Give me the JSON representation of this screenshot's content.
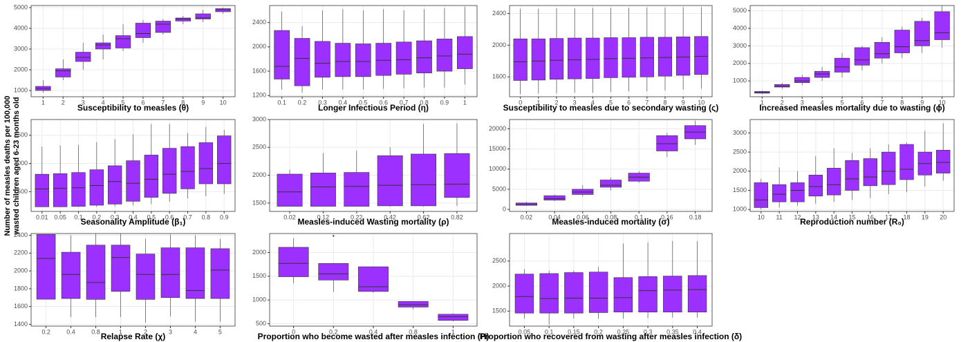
{
  "ylabel": [
    "Number of measles deaths per 100,000",
    "wasted children aged 6-23 months old"
  ],
  "chart_data": [
    {
      "type": "box",
      "xlabel": "Susceptibility to measles (θ)",
      "color": "#9b30ff",
      "categories": [
        "1",
        "2",
        "3",
        "4",
        "5",
        "6",
        "7",
        "8",
        "9",
        "10"
      ],
      "values": [
        [
          900,
          1000,
          1100,
          1200,
          1500
        ],
        [
          1500,
          1650,
          1950,
          2050,
          2500
        ],
        [
          2000,
          2400,
          2600,
          2850,
          3300
        ],
        [
          2500,
          3000,
          3200,
          3300,
          3700
        ],
        [
          2900,
          3050,
          3500,
          3650,
          4200
        ],
        [
          3300,
          3550,
          3750,
          4250,
          4400
        ],
        [
          3700,
          3800,
          4200,
          4350,
          4450
        ],
        [
          4200,
          4350,
          4450,
          4500,
          4600
        ],
        [
          4300,
          4450,
          4500,
          4700,
          4900
        ],
        [
          4700,
          4800,
          4900,
          4950,
          5000
        ]
      ],
      "ylim": [
        700,
        5100
      ],
      "yticks": [
        1000,
        2000,
        3000,
        4000,
        5000
      ],
      "grid": true
    },
    {
      "type": "box",
      "xlabel": "Longer Infectious Period (η)",
      "color": "#9b30ff",
      "categories": [
        "0.1",
        "0.2",
        "0.3",
        "0.4",
        "0.5",
        "0.6",
        "0.7",
        "0.8",
        "0.9",
        "1"
      ],
      "values": [
        [
          1300,
          1470,
          1680,
          2270,
          2580
        ],
        [
          1250,
          1360,
          1810,
          2140,
          2340
        ],
        [
          1300,
          1500,
          1730,
          2090,
          2600
        ],
        [
          1300,
          1510,
          1760,
          2060,
          2620
        ],
        [
          1300,
          1510,
          1760,
          2050,
          2600
        ],
        [
          1310,
          1530,
          1780,
          2060,
          2620
        ],
        [
          1320,
          1550,
          1790,
          2080,
          2600
        ],
        [
          1330,
          1570,
          1820,
          2100,
          2620
        ],
        [
          1330,
          1600,
          1850,
          2130,
          2640
        ],
        [
          1380,
          1640,
          1880,
          2170,
          2660
        ]
      ],
      "ylim": [
        1180,
        2680
      ],
      "yticks": [
        1200,
        1600,
        2000,
        2400
      ],
      "grid": true
    },
    {
      "type": "box",
      "xlabel": "Susceptibility to measles due to secondary wasting (ς)",
      "color": "#9b30ff",
      "categories": [
        "0",
        "1",
        "2",
        "3",
        "4",
        "5",
        "6",
        "7",
        "8",
        "9",
        "10"
      ],
      "values": [
        [
          1380,
          1555,
          1790,
          2080,
          2460
        ],
        [
          1390,
          1560,
          1800,
          2080,
          2460
        ],
        [
          1390,
          1570,
          1810,
          2085,
          2465
        ],
        [
          1400,
          1575,
          1815,
          2090,
          2465
        ],
        [
          1400,
          1580,
          1820,
          2090,
          2470
        ],
        [
          1410,
          1590,
          1830,
          2095,
          2470
        ],
        [
          1420,
          1595,
          1835,
          2095,
          2470
        ],
        [
          1420,
          1600,
          1840,
          2100,
          2475
        ],
        [
          1430,
          1610,
          1845,
          2100,
          2475
        ],
        [
          1440,
          1620,
          1850,
          2105,
          2480
        ],
        [
          1450,
          1630,
          1860,
          2110,
          2480
        ]
      ],
      "ylim": [
        1350,
        2500
      ],
      "yticks": [
        1600,
        2000,
        2400
      ],
      "grid": true
    },
    {
      "type": "box",
      "xlabel": "Increased measles mortality due to wasting (ϕ)",
      "color": "#9b30ff",
      "categories": [
        "1",
        "2",
        "3",
        "4",
        "5",
        "6",
        "7",
        "8",
        "9",
        "10"
      ],
      "values": [
        [
          250,
          300,
          350,
          400,
          450
        ],
        [
          550,
          650,
          700,
          800,
          900
        ],
        [
          750,
          900,
          1000,
          1200,
          1350
        ],
        [
          1000,
          1200,
          1400,
          1550,
          1800
        ],
        [
          1200,
          1500,
          1800,
          2300,
          2600
        ],
        [
          1600,
          1900,
          2200,
          2900,
          3000
        ],
        [
          2000,
          2300,
          2550,
          3200,
          3500
        ],
        [
          2300,
          2600,
          2950,
          3900,
          4100
        ],
        [
          2600,
          3000,
          3300,
          4400,
          4600
        ],
        [
          2900,
          3350,
          3750,
          4950,
          5300
        ]
      ],
      "ylim": [
        100,
        5300
      ],
      "yticks": [
        1000,
        2000,
        3000,
        4000,
        5000
      ],
      "grid": true
    },
    {
      "type": "box",
      "xlabel": "Seasonality Amplitude (β₁)",
      "color": "#9b30ff",
      "categories": [
        "0.01",
        "0.05",
        "0.1",
        "0.2",
        "0.3",
        "0.4",
        "0.5",
        "0.6",
        "0.7",
        "0.8",
        "0.9"
      ],
      "values": [
        [
          1230,
          1232,
          1550,
          1810,
          2300
        ],
        [
          1230,
          1232,
          1560,
          1820,
          2320
        ],
        [
          1230,
          1240,
          1570,
          1840,
          2330
        ],
        [
          1230,
          1260,
          1610,
          1890,
          2380
        ],
        [
          1240,
          1280,
          1680,
          1960,
          2430
        ],
        [
          1260,
          1330,
          1650,
          2050,
          2520
        ],
        [
          1280,
          1400,
          1720,
          2150,
          2700
        ],
        [
          1320,
          1470,
          1810,
          2270,
          2700
        ],
        [
          1380,
          1550,
          1860,
          2300,
          2540
        ],
        [
          1420,
          1640,
          1910,
          2370,
          2650
        ],
        [
          1460,
          1640,
          2000,
          2490,
          2600
        ]
      ],
      "ylim": [
        1150,
        2780
      ],
      "yticks": [
        1500,
        2000,
        2500
      ],
      "grid": true
    },
    {
      "type": "box",
      "xlabel": "Measles-induced Wasting mortality (ρ)",
      "color": "#9b30ff",
      "categories": [
        "0.02",
        "0.12",
        "0.22",
        "0.42",
        "0.62",
        "0.82"
      ],
      "values": [
        [
          1440,
          1442,
          1700,
          2020,
          2100
        ],
        [
          1440,
          1442,
          1790,
          2040,
          2400
        ],
        [
          1440,
          1442,
          1800,
          2050,
          2440
        ],
        [
          1440,
          1450,
          1820,
          2350,
          2500
        ],
        [
          1440,
          1450,
          1830,
          2380,
          2920
        ],
        [
          1450,
          1600,
          1840,
          2390,
          2930
        ]
      ],
      "ylim": [
        1350,
        3000
      ],
      "yticks": [
        1500,
        2000,
        2500,
        3000
      ],
      "grid": true
    },
    {
      "type": "box",
      "xlabel": "Measles-induced mortality (σ)",
      "color": "#9b30ff",
      "categories": [
        "0.02",
        "0.04",
        "0.06",
        "0.08",
        "0.1",
        "0.16",
        "0.18"
      ],
      "values": [
        [
          900,
          1000,
          1300,
          1600,
          1900
        ],
        [
          2000,
          2300,
          2700,
          3400,
          3700
        ],
        [
          3200,
          3700,
          4300,
          5000,
          6000
        ],
        [
          4700,
          5500,
          6000,
          7300,
          7900
        ],
        [
          6600,
          7000,
          8000,
          9000,
          9500
        ],
        [
          13000,
          14500,
          16300,
          18300,
          19000
        ],
        [
          16000,
          17500,
          19200,
          20800,
          22000
        ]
      ],
      "ylim": [
        -500,
        22300
      ],
      "yticks": [
        0,
        5000,
        10000,
        15000,
        20000
      ],
      "grid": true
    },
    {
      "type": "box",
      "xlabel": "Reproduction number (R₀)",
      "color": "#9b30ff",
      "categories": [
        "10",
        "11",
        "12",
        "13",
        "14",
        "15",
        "16",
        "17",
        "18",
        "19",
        "20"
      ],
      "values": [
        [
          1000,
          1050,
          1250,
          1700,
          1800
        ],
        [
          1050,
          1200,
          1400,
          1650,
          2100
        ],
        [
          1100,
          1200,
          1500,
          1700,
          2000
        ],
        [
          1150,
          1350,
          1600,
          1900,
          2400
        ],
        [
          1200,
          1380,
          1650,
          2080,
          2600
        ],
        [
          1250,
          1500,
          1800,
          2280,
          2480
        ],
        [
          1300,
          1620,
          1850,
          2330,
          2600
        ],
        [
          1400,
          1650,
          2000,
          2500,
          2700
        ],
        [
          1450,
          1780,
          2050,
          2700,
          2750
        ],
        [
          1600,
          1900,
          2200,
          2500,
          3050
        ],
        [
          1750,
          1950,
          2230,
          2550,
          3250
        ]
      ],
      "ylim": [
        950,
        3350
      ],
      "yticks": [
        1000,
        1500,
        2000,
        2500,
        3000
      ],
      "grid": true
    },
    {
      "type": "box",
      "xlabel": "Relapse Rate (χ)",
      "color": "#9b30ff",
      "categories": [
        "0.2",
        "0.4",
        "0.8",
        "1",
        "2",
        "3",
        "4",
        "5"
      ],
      "values": [
        [
          1680,
          1682,
          2140,
          2410,
          2412
        ],
        [
          1480,
          1690,
          1960,
          2210,
          2400
        ],
        [
          1480,
          1680,
          1870,
          2290,
          2420
        ],
        [
          1480,
          1770,
          2150,
          2290,
          2420
        ],
        [
          1420,
          1680,
          1960,
          2190,
          2360
        ],
        [
          1490,
          1700,
          1960,
          2260,
          2410
        ],
        [
          1430,
          1690,
          1780,
          2260,
          2400
        ],
        [
          1430,
          1690,
          2010,
          2250,
          2360
        ]
      ],
      "ylim": [
        1380,
        2420
      ],
      "yticks": [
        1400,
        1600,
        1800,
        2000,
        2200,
        2400
      ],
      "grid": true
    },
    {
      "type": "box",
      "xlabel": "Proportion who become wasted after measles infection (H)",
      "color": "#9b30ff",
      "categories": [
        "0",
        "0.2",
        "0.4",
        "0.8",
        "1"
      ],
      "values": [
        [
          1350,
          1490,
          1770,
          2110,
          2300
        ],
        [
          1170,
          1420,
          1550,
          1770,
          1780
        ],
        [
          1150,
          1180,
          1280,
          1700,
          1702
        ],
        [
          800,
          850,
          900,
          970,
          980
        ],
        [
          550,
          570,
          650,
          700,
          720
        ]
      ],
      "outliers": [
        {
          "x": "0.2",
          "value": 2350
        }
      ],
      "ylim": [
        450,
        2400
      ],
      "yticks": [
        500,
        1000,
        1500,
        2000
      ],
      "grid": true
    },
    {
      "type": "box",
      "xlabel": "Proportion who recovered from wasting after measles infection (δ)",
      "color": "#9b30ff",
      "categories": [
        "0.05",
        "0.1",
        "0.15",
        "0.2",
        "0.25",
        "0.3",
        "0.35",
        "0.4"
      ],
      "values": [
        [
          1350,
          1460,
          1790,
          2240,
          2340
        ],
        [
          1230,
          1460,
          1750,
          2250,
          2310
        ],
        [
          1350,
          1460,
          1760,
          2270,
          2310
        ],
        [
          1350,
          1470,
          1760,
          2280,
          2380
        ],
        [
          1350,
          1480,
          1770,
          2170,
          2850
        ],
        [
          1360,
          1480,
          1910,
          2190,
          2870
        ],
        [
          1370,
          1480,
          1920,
          2200,
          2900
        ],
        [
          1370,
          1480,
          1930,
          2210,
          2900
        ]
      ],
      "ylim": [
        1200,
        3050
      ],
      "yticks": [
        1500,
        2000,
        2500
      ],
      "grid": true
    }
  ]
}
